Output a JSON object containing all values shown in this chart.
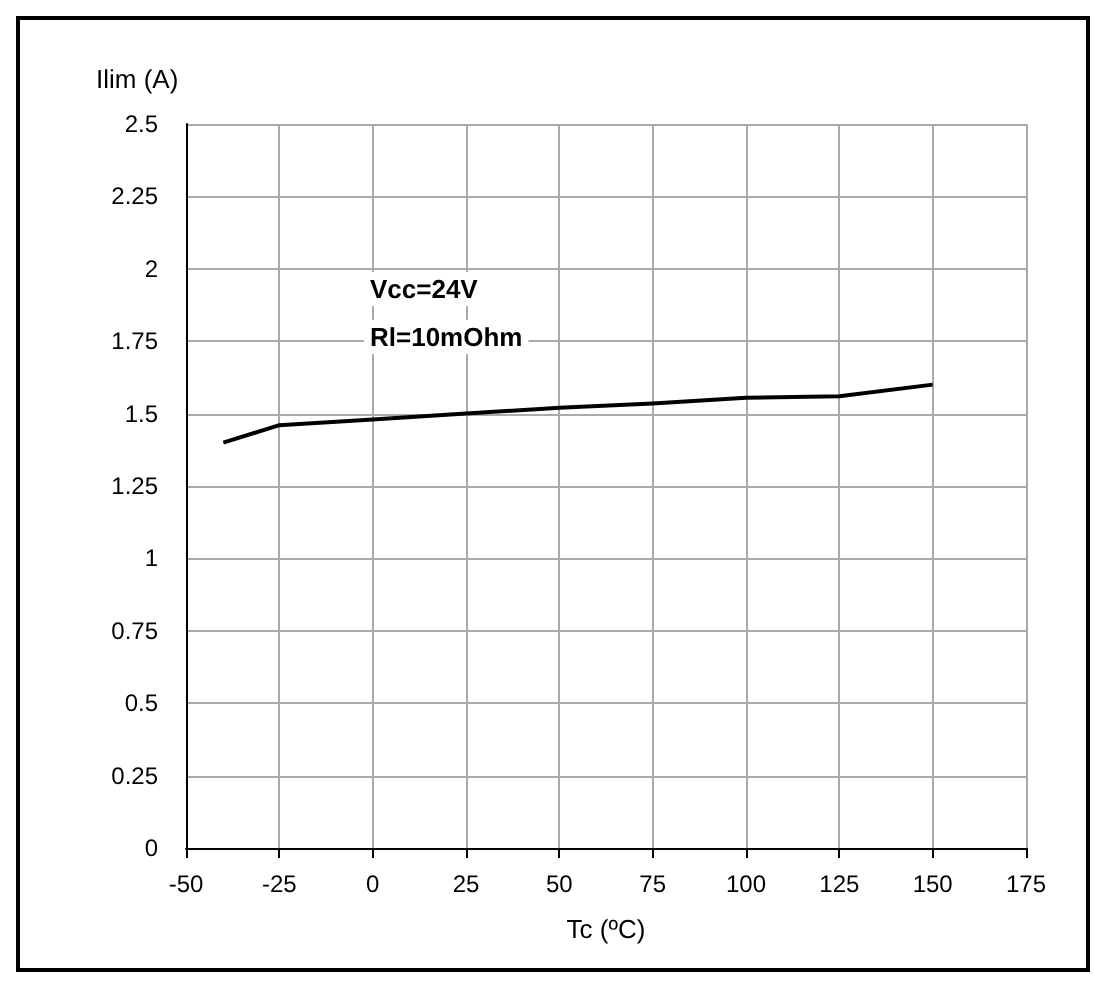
{
  "chart_data": {
    "type": "line",
    "xlabel": "Tc (ºC)",
    "ylabel": "Ilim (A)",
    "annotations": [
      "Vcc=24V",
      "Rl=10mOhm"
    ],
    "x": [
      -40,
      -25,
      0,
      25,
      50,
      75,
      100,
      125,
      150
    ],
    "series": [
      {
        "color": "#000000",
        "values": [
          1.4,
          1.46,
          1.48,
          1.5,
          1.52,
          1.535,
          1.555,
          1.56,
          1.6
        ]
      }
    ],
    "xlim": [
      -50,
      175
    ],
    "xticks": [
      -50,
      -25,
      0,
      25,
      50,
      75,
      100,
      125,
      150,
      175
    ],
    "ylim": [
      0,
      2.5
    ],
    "yticks": [
      0,
      0.25,
      0.5,
      0.75,
      1,
      1.25,
      1.5,
      1.75,
      2,
      2.25,
      2.5
    ],
    "grid": true,
    "marker": "none",
    "line_style": "solid"
  }
}
